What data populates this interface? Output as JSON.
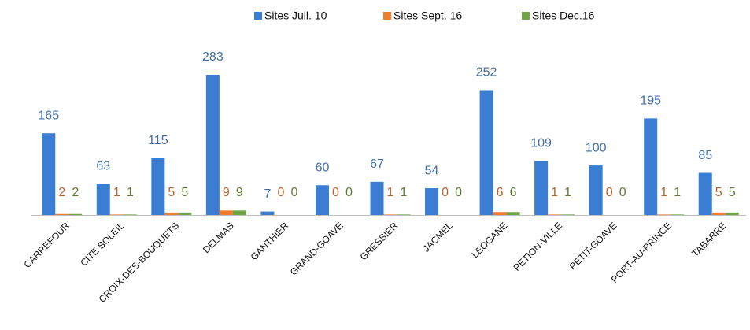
{
  "chart_data": {
    "type": "bar",
    "categories": [
      "CARREFOUR",
      "CITE SOLEIL",
      "CROIX-DES-BOUQUETS",
      "DELMAS",
      "GANTHIER",
      "GRAND-GOAVE",
      "GRESSIER",
      "JACMEL",
      "LEOGANE",
      "PETION-VILLE",
      "PETIT-GOAVE",
      "PORT-AU-PRINCE",
      "TABARRE"
    ],
    "series": [
      {
        "name": "Sites Juil. 10",
        "color": "#3b7dd3",
        "label_color": "#3f6fa6",
        "values": [
          165,
          63,
          115,
          283,
          7,
          60,
          67,
          54,
          252,
          109,
          100,
          195,
          85
        ]
      },
      {
        "name": "Sites Sept. 16",
        "color": "#ed7d31",
        "label_color": "#b8622a",
        "values": [
          2,
          1,
          5,
          9,
          0,
          0,
          1,
          0,
          6,
          1,
          0,
          1,
          5
        ]
      },
      {
        "name": "Sites Dec.16",
        "color": "#70a444",
        "label_color": "#5e7a30",
        "values": [
          2,
          1,
          5,
          9,
          0,
          0,
          1,
          0,
          6,
          1,
          0,
          1,
          5
        ]
      }
    ],
    "legend": "top"
  }
}
